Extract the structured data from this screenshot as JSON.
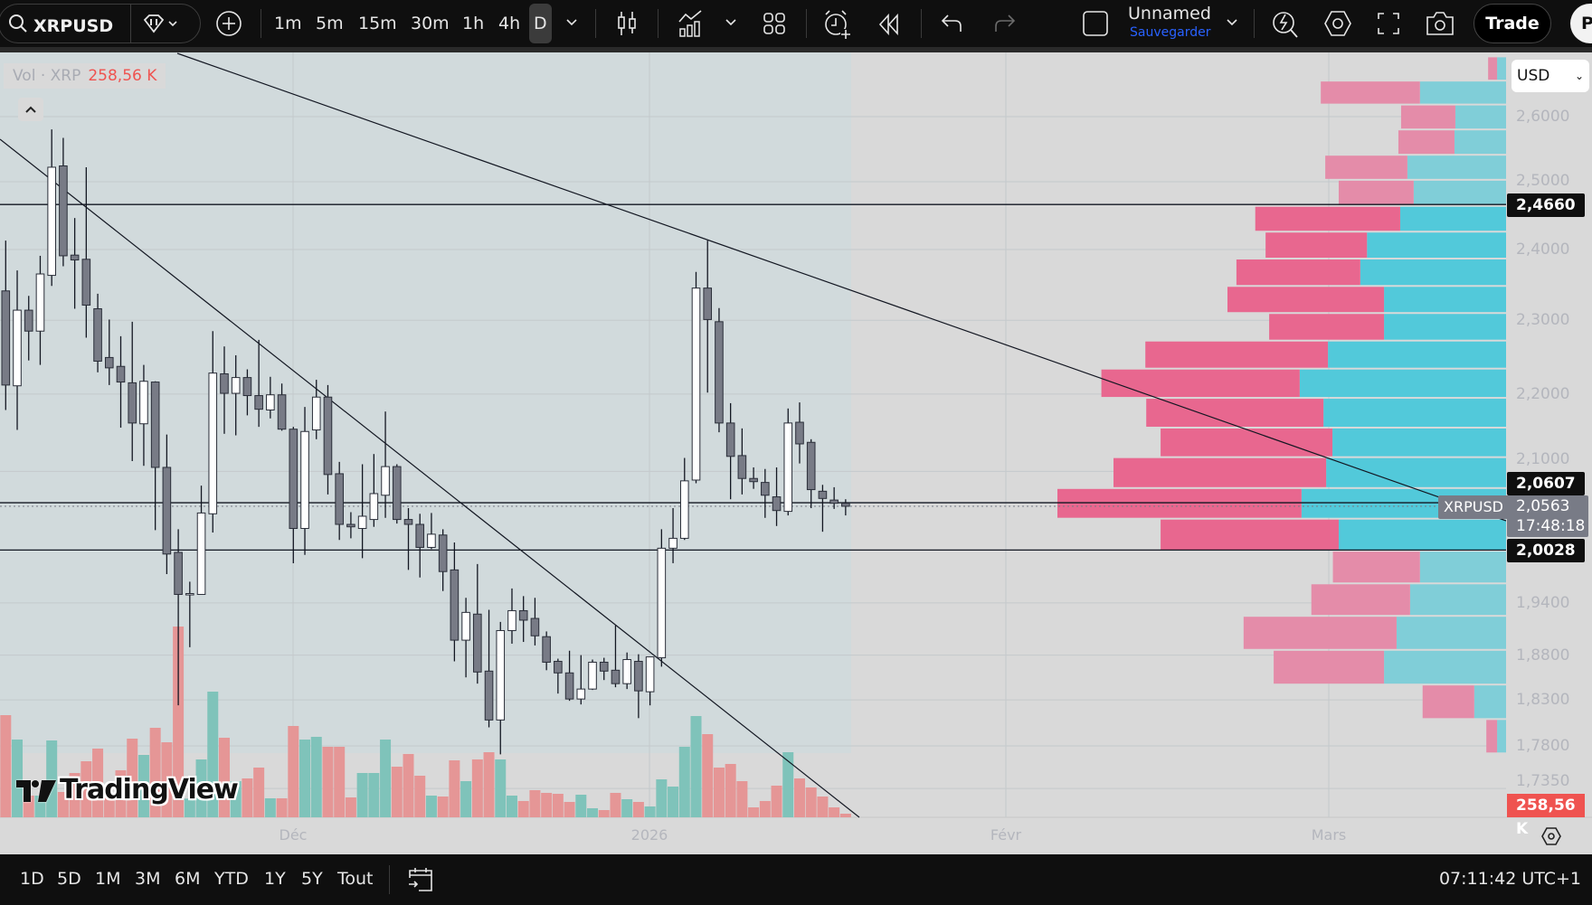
{
  "toolbar": {
    "symbol": "XRPUSD",
    "timeframes": [
      "1m",
      "5m",
      "15m",
      "30m",
      "1h",
      "4h",
      "D"
    ],
    "selected_timeframe": "D",
    "layout_name": "Unnamed",
    "save_label": "Sauvegarder",
    "trade_label": "Trade",
    "publish_label": "Pu",
    "icons": [
      "search-icon",
      "diamond-icon",
      "plus-circle-icon",
      "candles-icon",
      "indicators-icon",
      "layout-grid-icon",
      "alert-icon",
      "replay-icon",
      "undo-icon",
      "redo-icon",
      "layout-square-icon",
      "quick-search-icon",
      "settings-icon",
      "fullscreen-icon",
      "camera-icon"
    ]
  },
  "legend": {
    "label": "Vol · XRP",
    "value": "258,56 K"
  },
  "currency": "USD",
  "price_labels": {
    "resistance": "2,4660",
    "line_2": "2,0607",
    "symbol_tag": "XRPUSD",
    "last_price": "2,0563",
    "countdown": "17:48:18",
    "support": "2,0028",
    "volume": "258,56 K"
  },
  "time_axis": {
    "labels": [
      "Déc",
      "2026",
      "Févr",
      "Mars"
    ]
  },
  "bottom_bar": {
    "ranges": [
      "1D",
      "5D",
      "1M",
      "3M",
      "6M",
      "YTD",
      "1Y",
      "5Y",
      "Tout"
    ],
    "clock": "07:11:42 UTC+1"
  },
  "watermark": "TradingView",
  "colors": {
    "bull_body": "#ffffff",
    "bear_body": "#787b86",
    "candle_border": "#2a2e39",
    "volume_up": "#7fc3ba",
    "volume_down": "#e59696",
    "profile_down_value_area": "#e8678f",
    "profile_up_value_area": "#52c9da",
    "profile_down": "#e48ca9",
    "profile_up": "#80ced8",
    "last_price": "#787b86",
    "volume_label": "#ef5350"
  },
  "chart_data": {
    "type": "candlestick",
    "scale": "log",
    "price_ticks": [
      2.6,
      2.5,
      2.4,
      2.3,
      2.2,
      2.1,
      1.94,
      1.88,
      1.83,
      1.78,
      1.735
    ],
    "price_tick_labels": [
      "2,6000",
      "2,5000",
      "2,4000",
      "2,3000",
      "2,2000",
      "2,1000",
      "1,9400",
      "1,8800",
      "1,8300",
      "1,7800",
      "1,7350"
    ],
    "horizontal_lines": [
      2.466,
      2.0607,
      2.0028
    ],
    "last_price": 2.0563,
    "ohlc": [
      [
        2.341,
        2.413,
        2.179,
        2.212
      ],
      [
        2.211,
        2.37,
        2.153,
        2.314
      ],
      [
        2.314,
        2.334,
        2.245,
        2.285
      ],
      [
        2.285,
        2.391,
        2.239,
        2.365
      ],
      [
        2.363,
        2.58,
        2.348,
        2.522
      ],
      [
        2.524,
        2.567,
        2.376,
        2.391
      ],
      [
        2.392,
        2.446,
        2.316,
        2.385
      ],
      [
        2.386,
        2.522,
        2.276,
        2.321
      ],
      [
        2.316,
        2.337,
        2.229,
        2.244
      ],
      [
        2.249,
        2.301,
        2.212,
        2.235
      ],
      [
        2.237,
        2.278,
        2.156,
        2.216
      ],
      [
        2.215,
        2.298,
        2.113,
        2.162
      ],
      [
        2.161,
        2.239,
        2.107,
        2.217
      ],
      [
        2.216,
        2.217,
        2.027,
        2.105
      ],
      [
        2.105,
        2.147,
        1.974,
        1.998
      ],
      [
        2.0,
        2.028,
        1.824,
        1.95
      ],
      [
        1.95,
        1.965,
        1.889,
        1.951
      ],
      [
        1.95,
        2.082,
        1.95,
        2.048
      ],
      [
        2.047,
        2.285,
        2.024,
        2.228
      ],
      [
        2.227,
        2.264,
        2.148,
        2.201
      ],
      [
        2.201,
        2.252,
        2.146,
        2.222
      ],
      [
        2.222,
        2.233,
        2.172,
        2.198
      ],
      [
        2.198,
        2.273,
        2.157,
        2.18
      ],
      [
        2.179,
        2.223,
        2.168,
        2.199
      ],
      [
        2.199,
        2.214,
        2.152,
        2.154
      ],
      [
        2.154,
        2.157,
        1.987,
        2.029
      ],
      [
        2.029,
        2.183,
        1.997,
        2.151
      ],
      [
        2.153,
        2.219,
        2.141,
        2.196
      ],
      [
        2.196,
        2.212,
        2.071,
        2.096
      ],
      [
        2.097,
        2.112,
        2.015,
        2.034
      ],
      [
        2.034,
        2.049,
        2.017,
        2.031
      ],
      [
        2.029,
        2.109,
        1.993,
        2.044
      ],
      [
        2.04,
        2.122,
        2.031,
        2.072
      ],
      [
        2.07,
        2.177,
        2.042,
        2.106
      ],
      [
        2.106,
        2.109,
        2.035,
        2.04
      ],
      [
        2.04,
        2.054,
        1.979,
        2.034
      ],
      [
        2.034,
        2.047,
        1.97,
        2.006
      ],
      [
        2.006,
        2.048,
        2.004,
        2.022
      ],
      [
        2.021,
        2.028,
        1.954,
        1.977
      ],
      [
        1.979,
        2.012,
        1.873,
        1.897
      ],
      [
        1.897,
        1.946,
        1.855,
        1.929
      ],
      [
        1.927,
        1.986,
        1.848,
        1.861
      ],
      [
        1.862,
        1.932,
        1.8,
        1.808
      ],
      [
        1.808,
        1.918,
        1.771,
        1.908
      ],
      [
        1.908,
        1.957,
        1.893,
        1.931
      ],
      [
        1.931,
        1.948,
        1.895,
        1.92
      ],
      [
        1.922,
        1.946,
        1.891,
        1.902
      ],
      [
        1.901,
        1.907,
        1.863,
        1.872
      ],
      [
        1.873,
        1.876,
        1.837,
        1.86
      ],
      [
        1.86,
        1.885,
        1.829,
        1.831
      ],
      [
        1.831,
        1.88,
        1.825,
        1.842
      ],
      [
        1.842,
        1.875,
        1.841,
        1.872
      ],
      [
        1.872,
        1.877,
        1.852,
        1.862
      ],
      [
        1.863,
        1.914,
        1.844,
        1.848
      ],
      [
        1.848,
        1.883,
        1.842,
        1.875
      ],
      [
        1.873,
        1.881,
        1.81,
        1.84
      ],
      [
        1.839,
        1.878,
        1.824,
        1.878
      ],
      [
        1.877,
        2.028,
        1.867,
        2.005
      ],
      [
        2.005,
        2.054,
        1.987,
        2.017
      ],
      [
        2.017,
        2.117,
        2.015,
        2.088
      ],
      [
        2.089,
        2.368,
        2.085,
        2.345
      ],
      [
        2.345,
        2.413,
        2.202,
        2.301
      ],
      [
        2.298,
        2.317,
        2.15,
        2.162
      ],
      [
        2.162,
        2.188,
        2.065,
        2.119
      ],
      [
        2.12,
        2.155,
        2.071,
        2.091
      ],
      [
        2.091,
        2.105,
        2.078,
        2.087
      ],
      [
        2.086,
        2.103,
        2.042,
        2.07
      ],
      [
        2.068,
        2.105,
        2.032,
        2.051
      ],
      [
        2.05,
        2.181,
        2.045,
        2.162
      ],
      [
        2.163,
        2.189,
        2.11,
        2.135
      ],
      [
        2.137,
        2.141,
        2.054,
        2.077
      ],
      [
        2.075,
        2.083,
        2.025,
        2.066
      ],
      [
        2.064,
        2.08,
        2.053,
        2.06
      ],
      [
        2.06,
        2.065,
        2.045,
        2.0563
      ]
    ],
    "ohlc_fields": [
      "open",
      "high",
      "low",
      "close"
    ],
    "volume_k": [
      7305,
      5560,
      1552,
      1552,
      5495,
      1810,
      3168,
      4008,
      4913,
      1552,
      3362,
      5625,
      4461,
      6400,
      5366,
      13641,
      1336,
      4138,
      8986,
      5689,
      2586,
      2780,
      3556,
      1358,
      1358,
      6530,
      5560,
      5754,
      5043,
      5043,
      1422,
      3168,
      3168,
      5560,
      3620,
      4526,
      2974,
      1552,
      1487,
      4073,
      2586,
      4138,
      4655,
      4138,
      1552,
      1164,
      1940,
      1746,
      1681,
      1099,
      1616,
      647,
      517,
      1746,
      1293,
      1099,
      776,
      2715,
      2198,
      5043,
      7241,
      5948,
      3556,
      3814,
      2586,
      711,
      1164,
      2263,
      4655,
      2780,
      2133,
      1487,
      711,
      258.56
    ],
    "volume_profile": {
      "row_top_prices": [
        2.696,
        2.657,
        2.619,
        2.58,
        2.541,
        2.503,
        2.464,
        2.426,
        2.387,
        2.348,
        2.31,
        2.272,
        2.234,
        2.195,
        2.156,
        2.118,
        2.079,
        2.041,
        2.002,
        1.963,
        1.925,
        1.886,
        1.847,
        1.809
      ],
      "row_bottom_price": 1.772,
      "down_pct": [
        2.0,
        22.1,
        12.1,
        12.5,
        18.3,
        16.7,
        32.3,
        22.6,
        27.6,
        34.9,
        25.6,
        40.7,
        44.2,
        39.5,
        38.3,
        47.4,
        54.4,
        39.7,
        19.4,
        22.0,
        34.1,
        24.6,
        11.5,
        2.4
      ],
      "up_pct": [
        2.0,
        19.2,
        11.3,
        11.5,
        22.0,
        20.6,
        23.6,
        31.0,
        32.5,
        27.2,
        27.2,
        39.7,
        46.0,
        40.7,
        38.7,
        40.1,
        45.6,
        37.3,
        19.2,
        21.4,
        24.4,
        27.2,
        7.1,
        2.0
      ],
      "value_area_rows": [
        6,
        17
      ]
    }
  }
}
